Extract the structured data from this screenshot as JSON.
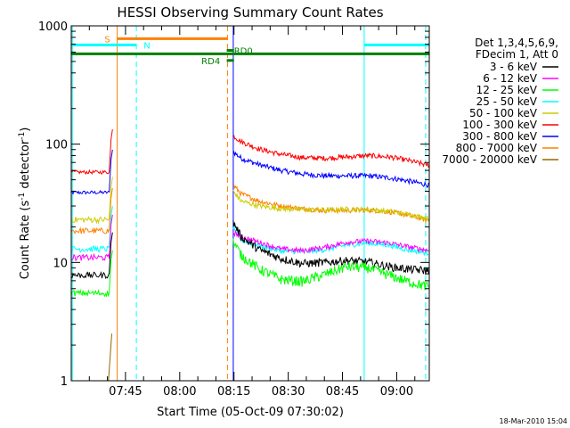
{
  "chart_data": {
    "type": "line",
    "title": "HESSI Observing Summary Count Rates",
    "xlabel": "Start Time (05-Oct-09 07:30:02)",
    "ylabel_main": "Count Rate (s",
    "ylabel_sup1": "-1",
    "ylabel_mid": " detector",
    "ylabel_sup2": "-1",
    "ylabel_end": ")",
    "y_scale": "log",
    "ylim": [
      1,
      1000
    ],
    "xlim_minutes": [
      0,
      99
    ],
    "x_ticks": [
      {
        "label": "07:45",
        "minute": 15
      },
      {
        "label": "08:00",
        "minute": 30
      },
      {
        "label": "08:15",
        "minute": 45
      },
      {
        "label": "08:30",
        "minute": 60
      },
      {
        "label": "08:45",
        "minute": 75
      },
      {
        "label": "09:00",
        "minute": 90
      }
    ],
    "y_ticks": [
      {
        "label": "1",
        "value": 1
      },
      {
        "label": "10",
        "value": 10
      },
      {
        "label": "100",
        "value": 100
      },
      {
        "label": "1000",
        "value": 1000
      }
    ],
    "legend_header": [
      "Det 1,3,4,5,6,9,",
      "FDecim 1, Att 0"
    ],
    "legend_position": "right",
    "series": [
      {
        "name": "3 - 6 keV",
        "color": "#000000",
        "pre": {
          "start": 0,
          "end": 10.5,
          "level": 7.8
        },
        "post": [
          [
            44.8,
            22
          ],
          [
            47,
            16.5
          ],
          [
            52,
            12.8
          ],
          [
            58,
            10.8
          ],
          [
            64,
            9.8
          ],
          [
            70,
            10.0
          ],
          [
            76,
            10.4
          ],
          [
            82,
            10.1
          ],
          [
            88,
            9.2
          ],
          [
            93,
            8.8
          ],
          [
            99,
            8.5
          ]
        ]
      },
      {
        "name": "6 - 12 keV",
        "color": "#ff00ff",
        "pre": {
          "start": 0,
          "end": 10.5,
          "level": 11
        },
        "post": [
          [
            44.8,
            18
          ],
          [
            47,
            16.5
          ],
          [
            52,
            14.8
          ],
          [
            58,
            13.0
          ],
          [
            64,
            12.6
          ],
          [
            70,
            13.4
          ],
          [
            76,
            14.8
          ],
          [
            82,
            15.2
          ],
          [
            88,
            14.6
          ],
          [
            93,
            13.6
          ],
          [
            99,
            12.6
          ]
        ]
      },
      {
        "name": "12 - 25 keV",
        "color": "#00ff00",
        "pre": {
          "start": 0,
          "end": 10.5,
          "level": 5.5
        },
        "post": [
          [
            44.8,
            15
          ],
          [
            47,
            11.5
          ],
          [
            52,
            8.8
          ],
          [
            58,
            7.2
          ],
          [
            64,
            6.9
          ],
          [
            70,
            7.9
          ],
          [
            76,
            9.2
          ],
          [
            82,
            9.0
          ],
          [
            88,
            7.8
          ],
          [
            93,
            6.9
          ],
          [
            99,
            6.2
          ]
        ]
      },
      {
        "name": "25 - 50 keV",
        "color": "#00ffff",
        "pre": {
          "start": 0,
          "end": 10.5,
          "level": 13
        },
        "post": [
          [
            44.8,
            20
          ],
          [
            47,
            15.5
          ],
          [
            52,
            13.8
          ],
          [
            58,
            12.5
          ],
          [
            64,
            12.3
          ],
          [
            70,
            12.8
          ],
          [
            76,
            14.0
          ],
          [
            82,
            14.6
          ],
          [
            88,
            14.0
          ],
          [
            93,
            12.8
          ],
          [
            99,
            12.0
          ]
        ]
      },
      {
        "name": "50 - 100 keV",
        "color": "#cccc00",
        "pre": {
          "start": 0,
          "end": 10.5,
          "level": 23
        },
        "post": [
          [
            44.8,
            40
          ],
          [
            47,
            33
          ],
          [
            52,
            30
          ],
          [
            58,
            28.5
          ],
          [
            64,
            28
          ],
          [
            70,
            27.8
          ],
          [
            76,
            28.2
          ],
          [
            82,
            28.0
          ],
          [
            88,
            27.0
          ],
          [
            93,
            25.5
          ],
          [
            99,
            23.5
          ]
        ]
      },
      {
        "name": "100 - 300 keV",
        "color": "#ff0000",
        "pre": {
          "start": 0,
          "end": 10.5,
          "level": 58
        },
        "post": [
          [
            44.8,
            118
          ],
          [
            47,
            105
          ],
          [
            52,
            91
          ],
          [
            58,
            82
          ],
          [
            64,
            77
          ],
          [
            70,
            76
          ],
          [
            76,
            78
          ],
          [
            82,
            80
          ],
          [
            88,
            78
          ],
          [
            93,
            73
          ],
          [
            99,
            66
          ]
        ]
      },
      {
        "name": "300 - 800 keV",
        "color": "#0000ff",
        "pre": {
          "start": 0,
          "end": 10.5,
          "level": 39
        },
        "post": [
          [
            44.8,
            86
          ],
          [
            47,
            76
          ],
          [
            52,
            67
          ],
          [
            58,
            60
          ],
          [
            64,
            56
          ],
          [
            70,
            54
          ],
          [
            76,
            54
          ],
          [
            82,
            54
          ],
          [
            88,
            52
          ],
          [
            93,
            49
          ],
          [
            99,
            45
          ]
        ]
      },
      {
        "name": "800 - 7000 keV",
        "color": "#ff8000",
        "pre": {
          "start": 0,
          "end": 10.5,
          "level": 18.5
        },
        "post": [
          [
            44.8,
            45
          ],
          [
            47,
            38
          ],
          [
            52,
            33
          ],
          [
            58,
            30
          ],
          [
            64,
            28.5
          ],
          [
            70,
            27.5
          ],
          [
            76,
            27.5
          ],
          [
            82,
            27.8
          ],
          [
            88,
            26.8
          ],
          [
            93,
            25.2
          ],
          [
            99,
            22.5
          ]
        ]
      },
      {
        "name": "7000 - 20000 keV",
        "color": "#996600",
        "pre": {
          "start": 10.3,
          "end": 11.2,
          "level": 2.5
        },
        "post": []
      }
    ],
    "flags": [
      {
        "label": "S",
        "color": "#ff8000",
        "start": 12.7,
        "end": 43.2,
        "value": 780,
        "label_minute": 9.2
      },
      {
        "label": "N",
        "color": "#00ffff",
        "start": 0,
        "end": 18.0,
        "value": 690,
        "label_minute": 20.0
      },
      {
        "label": "N",
        "color": "#00ffff",
        "start": 81.0,
        "end": 99,
        "value": 690,
        "label_minute": null
      },
      {
        "label": "",
        "color": "#008000",
        "start": 0,
        "end": 99,
        "value": 580,
        "label_minute": null
      },
      {
        "label": "RD0",
        "color": "#008000",
        "start": 43.0,
        "end": 45.0,
        "value": 620,
        "label_minute": 45.0
      },
      {
        "label": "RD4",
        "color": "#008000",
        "start": 43.0,
        "end": 45.0,
        "value": 510,
        "label_minute": 36.0
      }
    ],
    "vlines": [
      {
        "minute": 12.7,
        "color": "#ff8000",
        "style": "solid"
      },
      {
        "minute": 43.2,
        "color": "#ff8000",
        "style": "dashed"
      },
      {
        "minute": 18.0,
        "color": "#00ffff",
        "style": "dashed"
      },
      {
        "minute": 81.0,
        "color": "#00ffff",
        "style": "solid"
      },
      {
        "minute": 98.0,
        "color": "#00ffff",
        "style": "dashed"
      },
      {
        "minute": 0.3,
        "color": "#00ffff",
        "style": "solid"
      },
      {
        "minute": 44.8,
        "color": "#0000ff",
        "style": "solid"
      }
    ]
  },
  "timestamp": "18-Mar-2010 15:04"
}
